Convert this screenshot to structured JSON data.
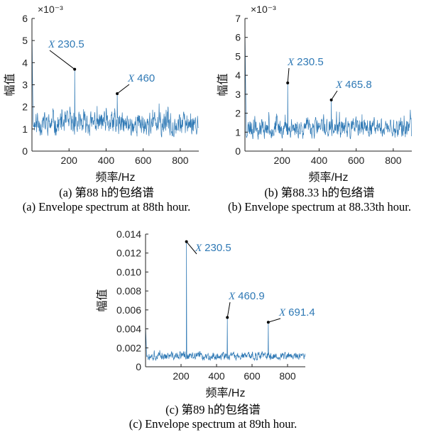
{
  "chart_data": [
    {
      "id": "a",
      "type": "line",
      "x_range": [
        0,
        900
      ],
      "ylim": [
        0,
        6
      ],
      "y_exponent": "×10⁻³",
      "xticks": [
        200,
        400,
        600,
        800
      ],
      "yticks": [
        0,
        1,
        2,
        3,
        4,
        5,
        6
      ],
      "xlabel": "频率/Hz",
      "ylabel": "幅值",
      "line_color": "#2f79b5",
      "noise": {
        "base": 1.2,
        "amp": 0.75,
        "seed": 11,
        "step": 1.4,
        "start_peak": 5.5
      },
      "peaks": [
        {
          "x": 230.5,
          "y": 3.7
        },
        {
          "x": 460,
          "y": 2.6
        }
      ],
      "annotations": [
        {
          "x": 230.5,
          "y": 3.7,
          "prefix": "X",
          "label": "230.5"
        },
        {
          "x": 460,
          "y": 2.6,
          "prefix": "X",
          "label": "460"
        }
      ],
      "caption_cn": "(a) 第88 h的包络谱",
      "caption_en": "(a) Envelope spectrum at 88th hour."
    },
    {
      "id": "b",
      "type": "line",
      "x_range": [
        0,
        900
      ],
      "ylim": [
        0,
        7
      ],
      "y_exponent": "×10⁻³",
      "xticks": [
        200,
        400,
        600,
        800
      ],
      "yticks": [
        0,
        1,
        2,
        3,
        4,
        5,
        6,
        7
      ],
      "xlabel": "频率/Hz",
      "ylabel": "幅值",
      "line_color": "#2f79b5",
      "noise": {
        "base": 1.2,
        "amp": 0.75,
        "seed": 23,
        "step": 1.4,
        "start_peak": 6.4
      },
      "peaks": [
        {
          "x": 230.5,
          "y": 3.6
        },
        {
          "x": 465.8,
          "y": 2.7
        }
      ],
      "annotations": [
        {
          "x": 230.5,
          "y": 3.6,
          "prefix": "X",
          "label": "230.5"
        },
        {
          "x": 465.8,
          "y": 2.7,
          "prefix": "X",
          "label": "465.8"
        }
      ],
      "caption_cn": "(b) 第88.33 h的包络谱",
      "caption_en": "(b) Envelope spectrum at 88.33th hour."
    },
    {
      "id": "c",
      "type": "line",
      "x_range": [
        0,
        900
      ],
      "ylim": [
        0,
        0.014
      ],
      "y_exponent": "",
      "xticks": [
        200,
        400,
        600,
        800
      ],
      "yticks": [
        0,
        0.002,
        0.004,
        0.006,
        0.008,
        0.01,
        0.012,
        0.014
      ],
      "ytick_labels": [
        "0",
        "0.002",
        "0.004",
        "0.006",
        "0.008",
        "0.010",
        "0.012",
        "0.014"
      ],
      "xlabel": "频率/Hz",
      "ylabel": "幅值",
      "line_color": "#2f79b5",
      "noise": {
        "base": 0.0011,
        "amp": 0.0006,
        "seed": 37,
        "step": 1.4,
        "start_peak": 0.0045
      },
      "peaks": [
        {
          "x": 230.5,
          "y": 0.0132
        },
        {
          "x": 460.9,
          "y": 0.0052
        },
        {
          "x": 691.4,
          "y": 0.0047
        }
      ],
      "annotations": [
        {
          "x": 230.5,
          "y": 0.0132,
          "prefix": "X",
          "label": "230.5"
        },
        {
          "x": 460.9,
          "y": 0.0052,
          "prefix": "X",
          "label": "460.9"
        },
        {
          "x": 691.4,
          "y": 0.0047,
          "prefix": "X",
          "label": "691.4"
        }
      ],
      "caption_cn": "(c) 第89 h的包络谱",
      "caption_en": "(c) Envelope spectrum at 89th hour."
    }
  ]
}
